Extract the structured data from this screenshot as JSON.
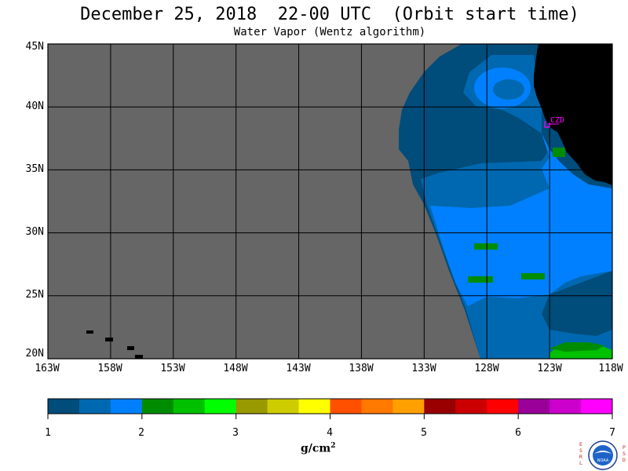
{
  "title": "December 25, 2018  22-00 UTC  (Orbit start time)",
  "subtitle": "Water Vapor (Wentz algorithm)",
  "map": {
    "lat_labels": [
      "45N",
      "40N",
      "35N",
      "30N",
      "25N",
      "20N"
    ],
    "lon_labels": [
      "163W",
      "158W",
      "153W",
      "148W",
      "143W",
      "138W",
      "133W",
      "128W",
      "123W",
      "118W"
    ],
    "lat_range": [
      20,
      45
    ],
    "lon_range": [
      -163,
      -118
    ],
    "station_label": "CZD",
    "colors": {
      "no_data": "#666666",
      "land": "#000000",
      "grid": "#000000",
      "station": "#ff00ff"
    }
  },
  "colorbar": {
    "tick_labels": [
      "1",
      "2",
      "3",
      "4",
      "5",
      "6",
      "7"
    ],
    "units_text": "g/cm",
    "units_power": "2",
    "colors": [
      "#004c7a",
      "#0068b0",
      "#0080ff",
      "#008c00",
      "#00c000",
      "#00ff00",
      "#999900",
      "#cccc00",
      "#ffff00",
      "#ff5000",
      "#ff7800",
      "#ffa000",
      "#990000",
      "#cc0000",
      "#ff0000",
      "#990099",
      "#cc00cc",
      "#ff00ff"
    ]
  },
  "logo": {
    "left_letters": "ESRL",
    "right_letters": "PSD",
    "center_text": "NOAA"
  }
}
